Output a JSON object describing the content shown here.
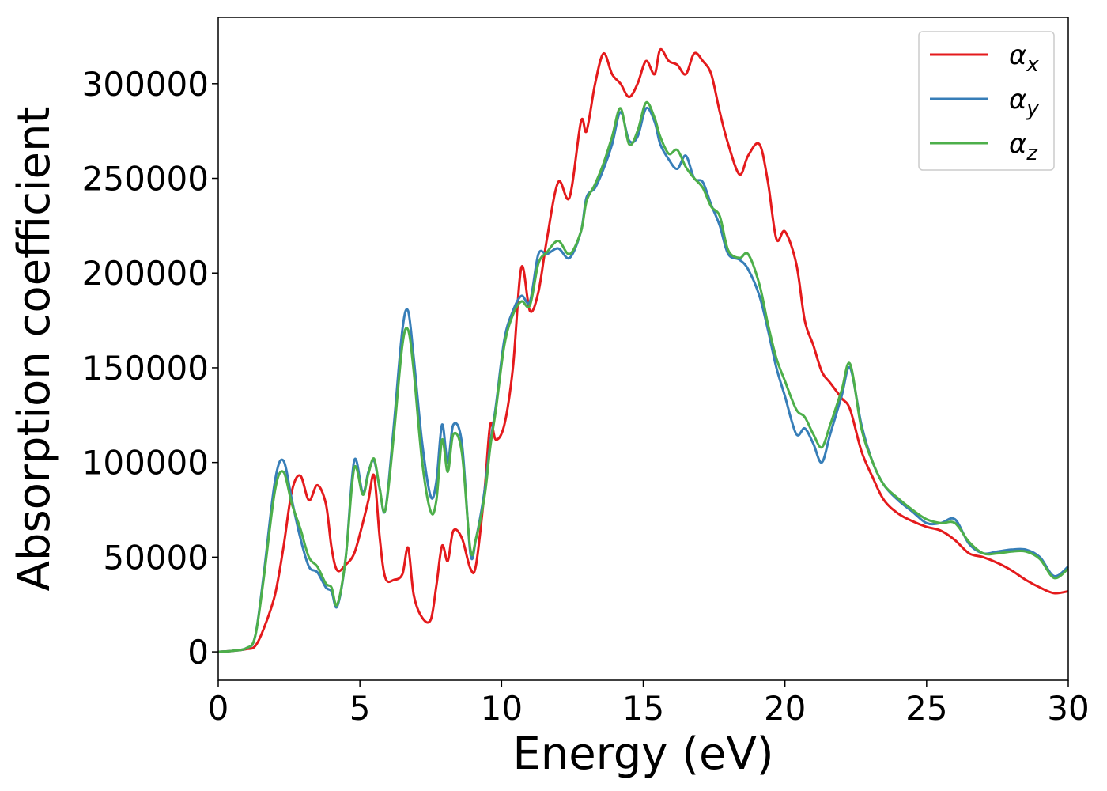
{
  "chart_data": {
    "type": "line",
    "title": "",
    "xlabel": "Energy (eV)",
    "ylabel": "Absorption coefficient",
    "xlim": [
      0,
      30
    ],
    "ylim": [
      -15000,
      335000
    ],
    "xticks": [
      0,
      5,
      10,
      15,
      20,
      25,
      30
    ],
    "yticks": [
      0,
      50000,
      100000,
      150000,
      200000,
      250000,
      300000
    ],
    "grid": false,
    "legend_position": "top-right",
    "series": [
      {
        "name": "αx",
        "label_base": "α",
        "label_sub": "x",
        "color": "#e41a1c",
        "x": [
          0,
          0.5,
          1.0,
          1.3,
          1.6,
          2.0,
          2.3,
          2.6,
          2.9,
          3.2,
          3.5,
          3.8,
          4.0,
          4.2,
          4.5,
          4.8,
          5.1,
          5.3,
          5.5,
          5.7,
          5.9,
          6.2,
          6.5,
          6.7,
          6.9,
          7.2,
          7.5,
          7.7,
          7.9,
          8.1,
          8.3,
          8.6,
          8.9,
          9.1,
          9.4,
          9.6,
          9.8,
          10.1,
          10.4,
          10.7,
          11.0,
          11.3,
          11.6,
          12.0,
          12.4,
          12.8,
          13.0,
          13.3,
          13.6,
          13.9,
          14.2,
          14.5,
          14.8,
          15.1,
          15.4,
          15.6,
          15.9,
          16.2,
          16.5,
          16.8,
          17.1,
          17.4,
          17.7,
          18.0,
          18.4,
          18.7,
          19.1,
          19.4,
          19.7,
          20.0,
          20.4,
          20.7,
          21.0,
          21.3,
          21.6,
          22.0,
          22.3,
          22.7,
          23.1,
          23.5,
          24.0,
          24.5,
          25.0,
          25.5,
          26.0,
          26.5,
          27.0,
          27.5,
          28.0,
          28.5,
          29.0,
          29.5,
          30.0
        ],
        "values": [
          0,
          500,
          1500,
          3000,
          12000,
          30000,
          55000,
          85000,
          93000,
          80000,
          88000,
          78000,
          55000,
          43000,
          46000,
          52000,
          68000,
          80000,
          93000,
          60000,
          39000,
          38000,
          41000,
          55000,
          30000,
          18000,
          17000,
          35000,
          56000,
          48000,
          64000,
          60000,
          44000,
          46000,
          85000,
          120000,
          112000,
          120000,
          150000,
          203000,
          180000,
          190000,
          218000,
          248000,
          240000,
          280000,
          275000,
          300000,
          316000,
          305000,
          300000,
          293000,
          300000,
          312000,
          305000,
          318000,
          312000,
          310000,
          305000,
          316000,
          312000,
          305000,
          285000,
          268000,
          252000,
          262000,
          268000,
          248000,
          218000,
          222000,
          205000,
          175000,
          162000,
          148000,
          142000,
          134000,
          128000,
          106000,
          92000,
          80000,
          73000,
          69000,
          66000,
          64000,
          59000,
          52000,
          50000,
          47000,
          43000,
          38000,
          34000,
          31000,
          32000
        ]
      },
      {
        "name": "αy",
        "label_base": "α",
        "label_sub": "y",
        "color": "#377eb8",
        "x": [
          0,
          0.5,
          1.0,
          1.3,
          1.6,
          2.0,
          2.3,
          2.6,
          2.9,
          3.2,
          3.5,
          3.8,
          4.0,
          4.2,
          4.5,
          4.8,
          5.1,
          5.3,
          5.5,
          5.7,
          5.9,
          6.2,
          6.5,
          6.7,
          6.9,
          7.2,
          7.5,
          7.7,
          7.9,
          8.1,
          8.3,
          8.6,
          8.9,
          9.1,
          9.4,
          9.6,
          9.8,
          10.1,
          10.4,
          10.7,
          11.0,
          11.3,
          11.6,
          12.0,
          12.4,
          12.8,
          13.0,
          13.3,
          13.6,
          13.9,
          14.2,
          14.5,
          14.8,
          15.1,
          15.4,
          15.6,
          15.9,
          16.2,
          16.5,
          16.8,
          17.1,
          17.4,
          17.7,
          18.0,
          18.4,
          18.7,
          19.1,
          19.4,
          19.7,
          20.0,
          20.4,
          20.7,
          21.0,
          21.3,
          21.6,
          22.0,
          22.3,
          22.7,
          23.1,
          23.5,
          24.0,
          24.5,
          25.0,
          25.5,
          26.0,
          26.5,
          27.0,
          27.5,
          28.0,
          28.5,
          29.0,
          29.5,
          30.0
        ],
        "values": [
          0,
          500,
          2000,
          8000,
          40000,
          90000,
          101000,
          80000,
          60000,
          45000,
          42000,
          34000,
          32000,
          24000,
          50000,
          101000,
          84000,
          95000,
          101000,
          86000,
          75000,
          120000,
          170000,
          180000,
          155000,
          110000,
          82000,
          90000,
          120000,
          100000,
          120000,
          110000,
          52000,
          60000,
          85000,
          110000,
          130000,
          165000,
          180000,
          188000,
          185000,
          210000,
          210000,
          213000,
          208000,
          222000,
          240000,
          245000,
          255000,
          268000,
          285000,
          270000,
          272000,
          287000,
          280000,
          268000,
          260000,
          255000,
          262000,
          250000,
          248000,
          236000,
          225000,
          210000,
          207000,
          202000,
          188000,
          170000,
          150000,
          135000,
          115000,
          118000,
          110000,
          100000,
          115000,
          135000,
          150000,
          120000,
          100000,
          88000,
          80000,
          74000,
          68000,
          68000,
          70000,
          57000,
          52000,
          53000,
          54000,
          54000,
          50000,
          40000,
          45000
        ]
      },
      {
        "name": "αz",
        "label_base": "α",
        "label_sub": "z",
        "color": "#4daf4a",
        "x": [
          0,
          0.5,
          1.0,
          1.3,
          1.6,
          2.0,
          2.3,
          2.6,
          2.9,
          3.2,
          3.5,
          3.8,
          4.0,
          4.2,
          4.5,
          4.8,
          5.1,
          5.3,
          5.5,
          5.7,
          5.9,
          6.2,
          6.5,
          6.7,
          6.9,
          7.2,
          7.5,
          7.7,
          7.9,
          8.1,
          8.3,
          8.6,
          8.9,
          9.1,
          9.4,
          9.6,
          9.8,
          10.1,
          10.4,
          10.7,
          11.0,
          11.3,
          11.6,
          12.0,
          12.4,
          12.8,
          13.0,
          13.3,
          13.6,
          13.9,
          14.2,
          14.5,
          14.8,
          15.1,
          15.4,
          15.6,
          15.9,
          16.2,
          16.5,
          16.8,
          17.1,
          17.4,
          17.7,
          18.0,
          18.4,
          18.7,
          19.1,
          19.4,
          19.7,
          20.0,
          20.4,
          20.7,
          21.0,
          21.3,
          21.6,
          22.0,
          22.3,
          22.7,
          23.1,
          23.5,
          24.0,
          24.5,
          25.0,
          25.5,
          26.0,
          26.5,
          27.0,
          27.5,
          28.0,
          28.5,
          29.0,
          29.5,
          30.0
        ],
        "values": [
          0,
          500,
          2000,
          8000,
          38000,
          85000,
          95000,
          78000,
          65000,
          50000,
          45000,
          36000,
          34000,
          25000,
          50000,
          97000,
          83000,
          94000,
          102000,
          86000,
          75000,
          115000,
          162000,
          170000,
          148000,
          100000,
          74000,
          80000,
          112000,
          95000,
          115000,
          105000,
          54000,
          60000,
          82000,
          108000,
          128000,
          162000,
          178000,
          185000,
          183000,
          205000,
          211000,
          217000,
          210000,
          222000,
          238000,
          247000,
          258000,
          272000,
          287000,
          268000,
          275000,
          290000,
          282000,
          272000,
          263000,
          265000,
          256000,
          250000,
          245000,
          235000,
          230000,
          212000,
          208000,
          210000,
          194000,
          173000,
          155000,
          143000,
          128000,
          124000,
          115000,
          108000,
          120000,
          138000,
          152000,
          118000,
          100000,
          88000,
          81000,
          75000,
          70000,
          68000,
          68000,
          58000,
          52000,
          52000,
          53000,
          53000,
          49000,
          39000,
          44000
        ]
      }
    ]
  }
}
